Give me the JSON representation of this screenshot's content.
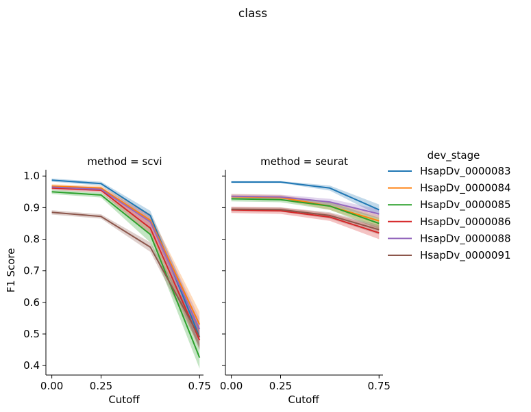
{
  "chart_data": {
    "type": "line",
    "title": "class",
    "xlabel": "Cutoff",
    "ylabel": "F1 Score",
    "x": [
      0.0,
      0.25,
      0.5,
      0.75
    ],
    "xticks": [
      "0.00",
      "0.25",
      "0.75"
    ],
    "xtick_values": [
      0.0,
      0.25,
      0.75
    ],
    "yticks": [
      "0.4",
      "0.5",
      "0.6",
      "0.7",
      "0.8",
      "0.9",
      "1.0"
    ],
    "ytick_values": [
      0.4,
      0.5,
      0.6,
      0.7,
      0.8,
      0.9,
      1.0
    ],
    "xlim": [
      -0.03,
      0.77
    ],
    "ylim": [
      0.37,
      1.02
    ],
    "grid": false,
    "legend_title": "dev_stage",
    "legend_placement": "right",
    "colors": [
      "#1f77b4",
      "#ff7f0e",
      "#2ca02c",
      "#d62728",
      "#9467bd",
      "#8c564b"
    ],
    "panels": [
      {
        "title": "method = scvi",
        "series": [
          {
            "name": "HsapDv_0000083",
            "values": [
              0.987,
              0.976,
              0.875,
              0.49
            ],
            "lower": [
              0.982,
              0.97,
              0.858,
              0.45
            ],
            "upper": [
              0.992,
              0.982,
              0.89,
              0.53
            ]
          },
          {
            "name": "HsapDv_0000084",
            "values": [
              0.968,
              0.962,
              0.86,
              0.53
            ],
            "lower": [
              0.962,
              0.955,
              0.84,
              0.5
            ],
            "upper": [
              0.974,
              0.969,
              0.88,
              0.57
            ]
          },
          {
            "name": "HsapDv_0000085",
            "values": [
              0.95,
              0.94,
              0.815,
              0.425
            ],
            "lower": [
              0.943,
              0.932,
              0.79,
              0.39
            ],
            "upper": [
              0.957,
              0.948,
              0.84,
              0.47
            ]
          },
          {
            "name": "HsapDv_0000086",
            "values": [
              0.962,
              0.955,
              0.835,
              0.48
            ],
            "lower": [
              0.956,
              0.948,
              0.815,
              0.45
            ],
            "upper": [
              0.968,
              0.962,
              0.855,
              0.51
            ]
          },
          {
            "name": "HsapDv_0000088",
            "values": [
              0.965,
              0.958,
              0.855,
              0.515
            ],
            "lower": [
              0.959,
              0.951,
              0.835,
              0.48
            ],
            "upper": [
              0.971,
              0.965,
              0.875,
              0.55
            ]
          },
          {
            "name": "HsapDv_0000091",
            "values": [
              0.885,
              0.872,
              0.775,
              0.49
            ],
            "lower": [
              0.878,
              0.865,
              0.76,
              0.46
            ],
            "upper": [
              0.892,
              0.879,
              0.79,
              0.52
            ]
          }
        ]
      },
      {
        "title": "method = seurat",
        "series": [
          {
            "name": "HsapDv_0000083",
            "values": [
              0.981,
              0.981,
              0.962,
              0.893
            ],
            "lower": [
              0.978,
              0.978,
              0.954,
              0.875
            ],
            "upper": [
              0.984,
              0.984,
              0.97,
              0.91
            ]
          },
          {
            "name": "HsapDv_0000084",
            "values": [
              0.935,
              0.932,
              0.905,
              0.858
            ],
            "lower": [
              0.927,
              0.924,
              0.893,
              0.84
            ],
            "upper": [
              0.943,
              0.94,
              0.917,
              0.876
            ]
          },
          {
            "name": "HsapDv_0000085",
            "values": [
              0.928,
              0.925,
              0.905,
              0.85
            ],
            "lower": [
              0.92,
              0.917,
              0.893,
              0.832
            ],
            "upper": [
              0.936,
              0.933,
              0.917,
              0.868
            ]
          },
          {
            "name": "HsapDv_0000086",
            "values": [
              0.893,
              0.89,
              0.87,
              0.82
            ],
            "lower": [
              0.883,
              0.88,
              0.858,
              0.8
            ],
            "upper": [
              0.903,
              0.9,
              0.882,
              0.84
            ]
          },
          {
            "name": "HsapDv_0000088",
            "values": [
              0.936,
              0.934,
              0.918,
              0.88
            ],
            "lower": [
              0.929,
              0.927,
              0.908,
              0.865
            ],
            "upper": [
              0.943,
              0.941,
              0.928,
              0.895
            ]
          },
          {
            "name": "HsapDv_0000091",
            "values": [
              0.895,
              0.894,
              0.875,
              0.83
            ],
            "lower": [
              0.888,
              0.887,
              0.865,
              0.815
            ],
            "upper": [
              0.902,
              0.901,
              0.885,
              0.845
            ]
          }
        ]
      }
    ]
  }
}
